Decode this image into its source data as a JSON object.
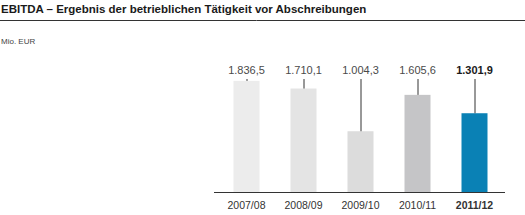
{
  "chart_data": {
    "type": "bar",
    "title": "EBITDA – Ergebnis der betrieblichen Tätigkeit vor Abschreibungen",
    "subtitle": "Mio. EUR",
    "categories": [
      "2007/08",
      "2008/09",
      "2009/10",
      "2010/11",
      "2011/12"
    ],
    "values": [
      1836.5,
      1710.1,
      1004.3,
      1605.6,
      1301.9
    ],
    "value_labels": [
      "1.836,5",
      "1.710,1",
      "1.004,3",
      "1.605,6",
      "1.301,9"
    ],
    "colors": [
      "#ececec",
      "#e4e4e4",
      "#dcdcdc",
      "#c5c5c7",
      "#0a81b5"
    ],
    "ylim": [
      0,
      2000
    ],
    "grid": false,
    "data_labels": true,
    "tick_labels": "x"
  }
}
